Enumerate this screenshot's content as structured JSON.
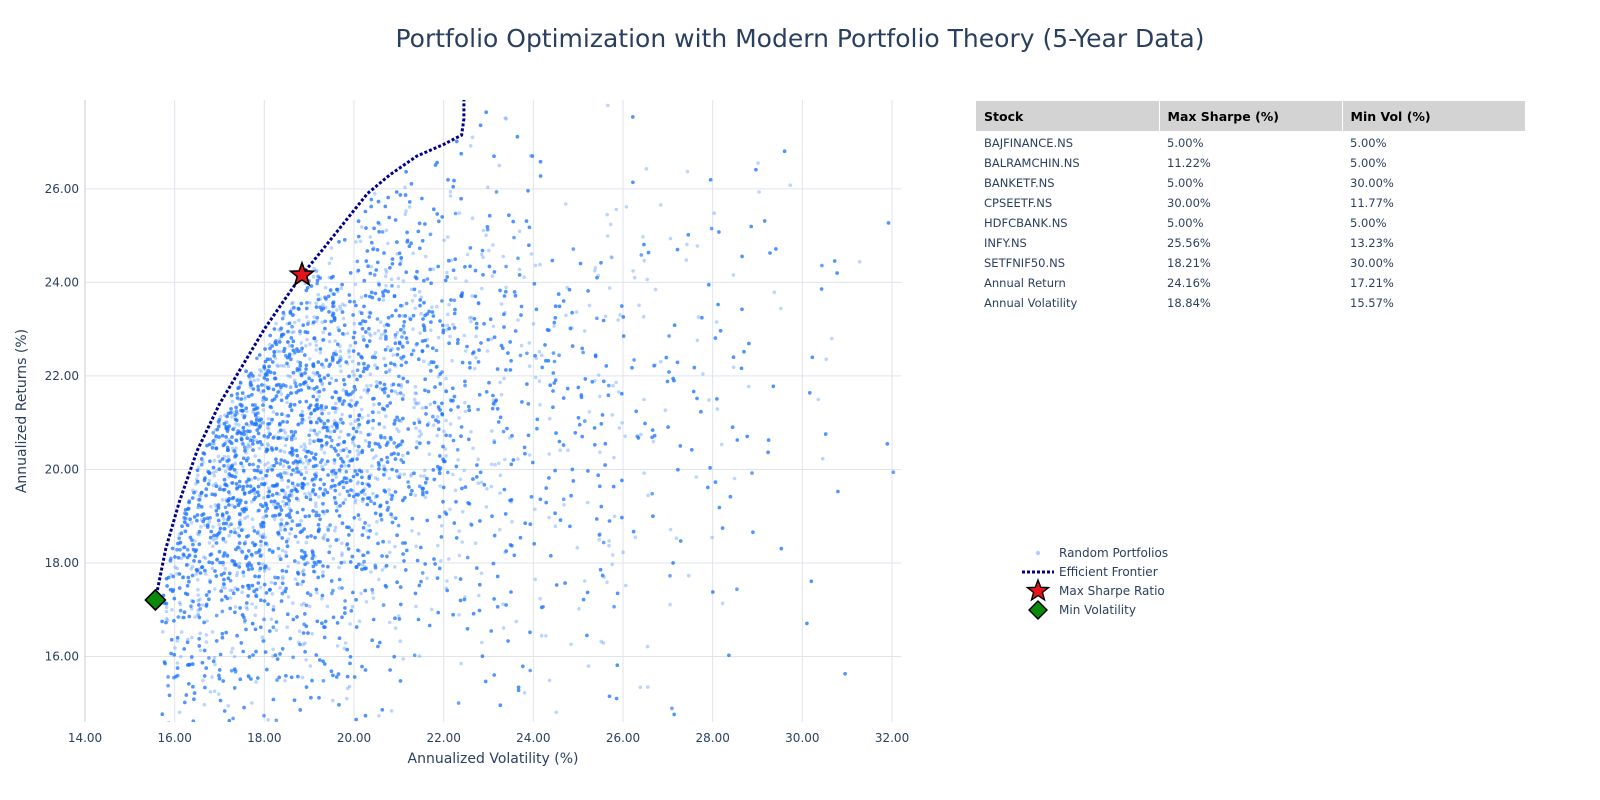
{
  "chart_data": {
    "type": "scatter",
    "title": "Portfolio Optimization with Modern Portfolio Theory (5-Year Data)",
    "xlabel": "Annualized Volatility (%)",
    "ylabel": "Annualized Returns (%)",
    "xlim": [
      14.0,
      32.2
    ],
    "ylim": [
      14.6,
      27.9
    ],
    "xticks": [
      "14.00",
      "16.00",
      "18.00",
      "20.00",
      "22.00",
      "24.00",
      "26.00",
      "28.00",
      "30.00",
      "32.00"
    ],
    "yticks": [
      "16.00",
      "18.00",
      "20.00",
      "22.00",
      "24.00",
      "26.00"
    ],
    "grid": true,
    "legend_position": "bottom-right",
    "series": [
      {
        "name": "Random Portfolios",
        "kind": "scatter",
        "color": "#1a73ff",
        "point_count": 20000,
        "sampled_x": [
          15.5,
          16.2,
          16.8,
          17.2,
          17.5,
          17.8,
          18.1,
          18.4,
          18.7,
          19.0,
          19.3,
          19.6,
          19.9,
          20.2,
          20.5,
          20.8,
          21.1,
          21.5,
          21.9,
          22.3,
          22.8,
          23.3,
          23.8,
          24.4,
          25.0,
          25.6,
          26.3,
          27.0,
          27.8,
          28.6,
          29.5,
          30.4,
          31.3,
          32.1
        ],
        "sampled_y": [
          16.2,
          17.5,
          19.1,
          16.4,
          20.3,
          18.0,
          21.5,
          17.1,
          22.6,
          19.2,
          20.8,
          23.1,
          18.6,
          21.9,
          24.0,
          19.7,
          22.4,
          20.9,
          24.9,
          21.6,
          23.7,
          25.8,
          20.4,
          24.6,
          22.1,
          26.3,
          23.4,
          21.2,
          25.5,
          22.8,
          24.1,
          20.6,
          26.9,
          21.4
        ]
      },
      {
        "name": "Efficient Frontier",
        "kind": "line",
        "color": "#00008b",
        "x": [
          15.57,
          15.8,
          16.1,
          16.5,
          17.0,
          17.5,
          18.0,
          18.5,
          18.84,
          19.3,
          19.8,
          20.3,
          20.8,
          21.4,
          22.0,
          22.4,
          22.45,
          22.45
        ],
        "y": [
          17.21,
          18.3,
          19.3,
          20.4,
          21.4,
          22.2,
          23.0,
          23.7,
          24.16,
          24.7,
          25.3,
          25.9,
          26.3,
          26.7,
          26.95,
          27.15,
          27.5,
          27.9
        ]
      },
      {
        "name": "Max Sharpe Ratio",
        "kind": "marker",
        "marker": "star",
        "color": "#e8131a",
        "x": [
          18.84
        ],
        "y": [
          24.16
        ]
      },
      {
        "name": "Min Volatility",
        "kind": "marker",
        "marker": "diamond",
        "color": "#0a8a0a",
        "x": [
          15.57
        ],
        "y": [
          17.21
        ]
      }
    ]
  },
  "table": {
    "headers": [
      "Stock",
      "Max Sharpe (%)",
      "Min Vol (%)"
    ],
    "rows": [
      [
        "BAJFINANCE.NS",
        "5.00%",
        "5.00%"
      ],
      [
        "BALRAMCHIN.NS",
        "11.22%",
        "5.00%"
      ],
      [
        "BANKETF.NS",
        "5.00%",
        "30.00%"
      ],
      [
        "CPSEETF.NS",
        "30.00%",
        "11.77%"
      ],
      [
        "HDFCBANK.NS",
        "5.00%",
        "5.00%"
      ],
      [
        "INFY.NS",
        "25.56%",
        "13.23%"
      ],
      [
        "SETFNIF50.NS",
        "18.21%",
        "30.00%"
      ],
      [
        "Annual Return",
        "24.16%",
        "17.21%"
      ],
      [
        "Annual Volatility",
        "18.84%",
        "15.57%"
      ]
    ]
  }
}
